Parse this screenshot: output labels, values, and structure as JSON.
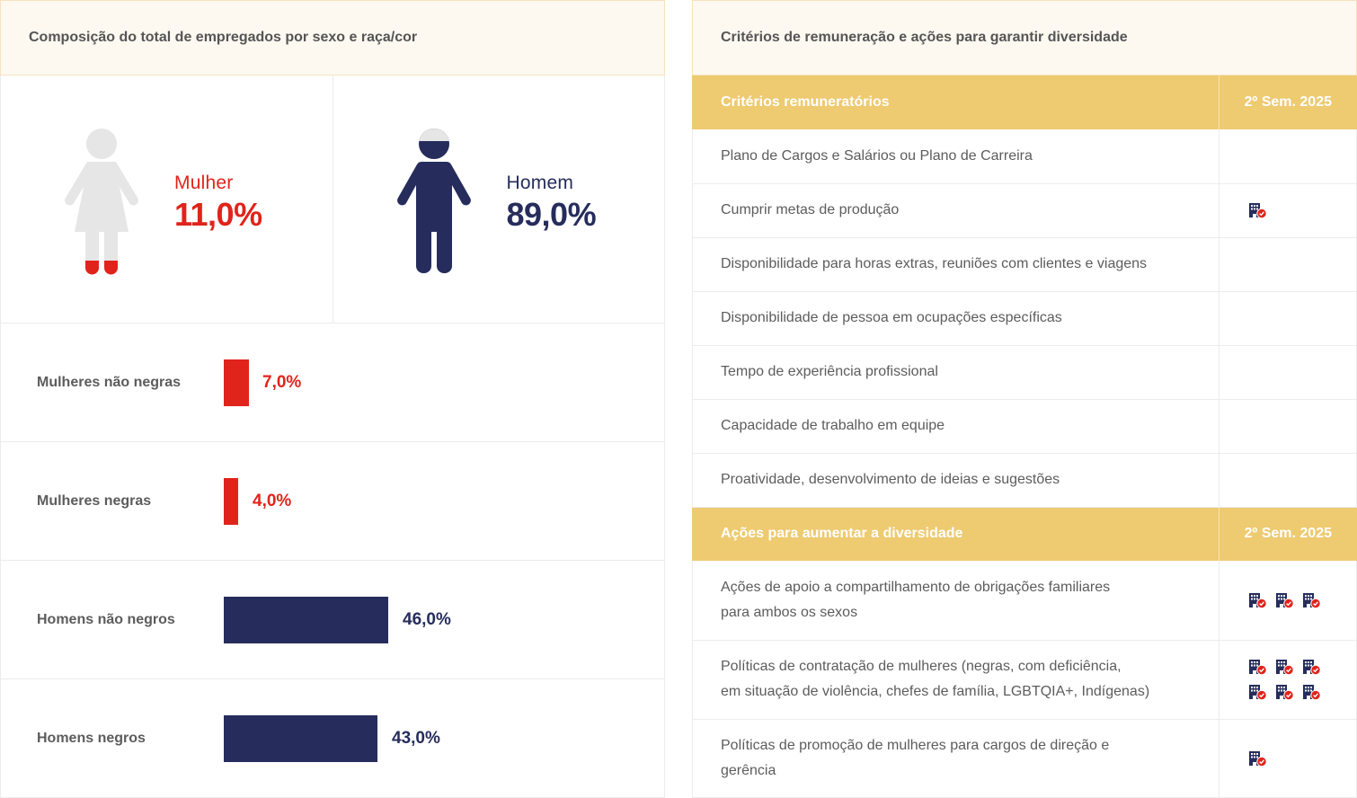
{
  "left_panel": {
    "title": "Composição do total de empregados por sexo e raça/cor",
    "gender": [
      {
        "label": "Mulher",
        "value": "11,0%",
        "color": "#e0241b",
        "icon": "woman-figure-icon"
      },
      {
        "label": "Homem",
        "value": "89,0%",
        "color": "#262d5c",
        "icon": "man-figure-icon"
      }
    ],
    "bars": [
      {
        "label": "Mulheres não negras",
        "value": "7,0%",
        "color": "#e0241b"
      },
      {
        "label": "Mulheres negras",
        "value": "4,0%",
        "color": "#e0241b"
      },
      {
        "label": "Homens não negros",
        "value": "46,0%",
        "color": "#262d5c"
      },
      {
        "label": "Homens negros",
        "value": "43,0%",
        "color": "#262d5c"
      }
    ]
  },
  "right_panel": {
    "title": "Critérios de remuneração e ações para garantir diversidade",
    "sections": [
      {
        "header": "Critérios remuneratórios",
        "period": "2º Sem. 2025",
        "rows": [
          {
            "text": "Plano de Cargos e Salários ou Plano de Carreira",
            "icons": 0
          },
          {
            "text": "Cumprir metas de produção",
            "icons": 1
          },
          {
            "text": "Disponibilidade para horas extras, reuniões com clientes e viagens",
            "icons": 0
          },
          {
            "text": "Disponibilidade de pessoa em ocupações específicas",
            "icons": 0
          },
          {
            "text": "Tempo de experiência profissional",
            "icons": 0
          },
          {
            "text": "Capacidade de trabalho em equipe",
            "icons": 0
          },
          {
            "text": "Proatividade, desenvolvimento de ideias e sugestões",
            "icons": 0
          }
        ]
      },
      {
        "header": "Ações para aumentar a diversidade",
        "period": "2º Sem. 2025",
        "rows": [
          {
            "text_line1": "Ações de apoio a compartilhamento de obrigações familiares",
            "text_line2": "para ambos os sexos",
            "icons": 3
          },
          {
            "text_line1": "Políticas de contratação de mulheres (negras, com deficiência,",
            "text_line2": "em situação de violência, chefes de família, LGBTQIA+, Indígenas)",
            "icons": 6
          },
          {
            "text_line1": "Políticas de promoção de mulheres para cargos de direção e",
            "text_line2": "gerência",
            "icons": 1
          }
        ]
      }
    ],
    "icon": "company-verified-icon"
  },
  "colors": {
    "female": "#e0241b",
    "male": "#262d5c",
    "figure_gray": "#e6e6e6",
    "header_bg": "#fdf9f1",
    "section_bg": "#eeca71"
  },
  "chart_data": {
    "type": "bar",
    "title": "Composição do total de empregados por sexo e raça/cor",
    "categories": [
      "Mulheres não negras",
      "Mulheres negras",
      "Homens não negros",
      "Homens negros"
    ],
    "values": [
      7.0,
      4.0,
      46.0,
      43.0
    ],
    "unit": "%",
    "orientation": "horizontal",
    "summary": {
      "Mulher": 11.0,
      "Homem": 89.0
    }
  }
}
